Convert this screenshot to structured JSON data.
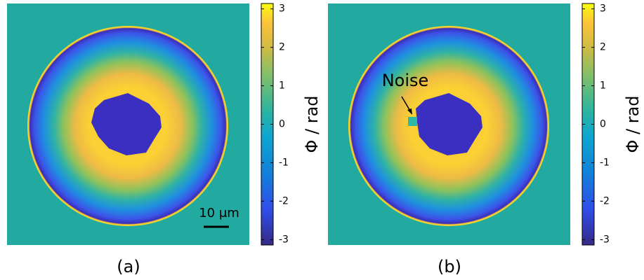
{
  "panels": [
    {
      "label": "(a)",
      "scale_bar": "10 μm",
      "colorbar": {
        "label": "Φ / rad",
        "range": [
          -3.14,
          3.14
        ],
        "ticks": [
          3,
          2,
          1,
          0,
          -1,
          -2,
          -3
        ]
      }
    },
    {
      "label": "(b)",
      "annotation": "Noise",
      "colorbar": {
        "label": "Φ / rad",
        "range": [
          -3.14,
          3.14
        ],
        "ticks": [
          3,
          2,
          1,
          0,
          -1,
          -2,
          -3
        ]
      }
    }
  ]
}
